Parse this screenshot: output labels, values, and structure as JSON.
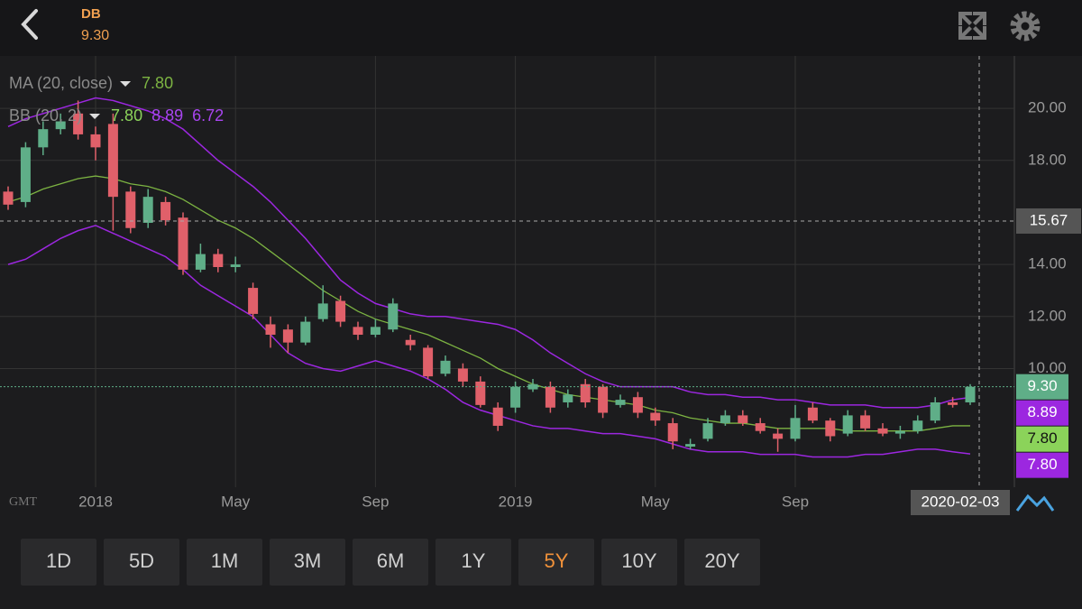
{
  "header": {
    "symbol": "DB",
    "price": "9.30"
  },
  "chart_data": {
    "type": "candlestick",
    "categories": [
      null,
      null,
      null,
      null,
      null,
      "2018",
      null,
      null,
      null,
      null,
      null,
      null,
      null,
      "May",
      null,
      null,
      null,
      null,
      null,
      null,
      null,
      "Sep",
      null,
      null,
      null,
      null,
      null,
      null,
      null,
      "2019",
      null,
      null,
      null,
      null,
      null,
      null,
      null,
      "May",
      null,
      null,
      null,
      null,
      null,
      null,
      null,
      "Sep",
      null,
      null,
      null,
      null,
      null,
      null,
      null,
      null,
      null,
      null
    ],
    "open": [
      16.8,
      16.4,
      18.5,
      19.2,
      19.8,
      19.0,
      19.4,
      16.8,
      15.6,
      16.4,
      15.8,
      13.8,
      14.4,
      13.9,
      13.1,
      11.7,
      11.5,
      11.0,
      11.9,
      12.6,
      11.6,
      11.3,
      11.5,
      11.1,
      10.8,
      9.8,
      10.0,
      9.5,
      8.5,
      8.5,
      9.2,
      9.3,
      8.7,
      9.4,
      9.3,
      8.6,
      8.9,
      8.3,
      7.9,
      7.0,
      7.3,
      7.9,
      8.2,
      7.9,
      7.5,
      7.3,
      8.5,
      8.0,
      7.5,
      8.2,
      7.7,
      7.5,
      7.6,
      8.0,
      8.7,
      8.7
    ],
    "high": [
      17.0,
      18.7,
      19.5,
      19.8,
      20.3,
      19.3,
      19.8,
      17.0,
      16.9,
      16.6,
      16.0,
      14.8,
      14.6,
      14.3,
      13.3,
      12.0,
      11.7,
      12.0,
      13.2,
      12.8,
      11.8,
      11.9,
      12.7,
      11.3,
      10.9,
      10.5,
      10.2,
      9.7,
      8.7,
      9.5,
      9.6,
      9.5,
      9.2,
      9.6,
      9.4,
      9.0,
      9.1,
      8.5,
      8.1,
      7.3,
      8.1,
      8.4,
      8.4,
      8.1,
      7.7,
      8.6,
      8.7,
      8.1,
      8.4,
      8.4,
      7.9,
      7.8,
      8.2,
      8.9,
      8.9,
      9.4
    ],
    "low": [
      16.1,
      16.2,
      18.2,
      19.0,
      18.8,
      18.0,
      15.3,
      15.2,
      15.4,
      15.5,
      13.6,
      13.7,
      13.7,
      13.7,
      11.9,
      10.8,
      10.6,
      10.9,
      11.8,
      11.6,
      11.1,
      11.2,
      11.4,
      10.7,
      9.6,
      9.7,
      9.3,
      8.5,
      7.6,
      8.3,
      9.1,
      8.3,
      8.5,
      8.5,
      8.1,
      8.5,
      8.1,
      7.8,
      6.9,
      6.9,
      7.2,
      7.8,
      7.8,
      7.5,
      6.8,
      7.2,
      7.9,
      7.2,
      7.4,
      7.6,
      7.4,
      7.3,
      7.5,
      7.9,
      8.5,
      8.6
    ],
    "close": [
      16.3,
      18.5,
      19.2,
      19.5,
      19.0,
      18.5,
      16.6,
      15.4,
      16.6,
      15.7,
      13.8,
      14.4,
      13.9,
      14.0,
      12.1,
      11.3,
      11.0,
      11.8,
      12.5,
      11.8,
      11.3,
      11.6,
      12.5,
      10.9,
      9.7,
      10.3,
      9.5,
      8.6,
      7.8,
      9.3,
      9.4,
      8.5,
      9.0,
      8.7,
      8.3,
      8.8,
      8.3,
      8.0,
      7.2,
      7.1,
      7.9,
      8.2,
      7.9,
      7.6,
      7.3,
      8.1,
      8.0,
      7.4,
      8.2,
      7.7,
      7.5,
      7.6,
      8.0,
      8.7,
      8.6,
      9.3
    ],
    "up_color": "#5fae88",
    "down_color": "#e0606a",
    "ylim": [
      5.44,
      21.91
    ],
    "yticks": [
      {
        "value": 10,
        "label": "10.00"
      },
      {
        "value": 12,
        "label": "12.00"
      },
      {
        "value": 14,
        "label": "14.00"
      },
      {
        "value": 18,
        "label": "18.00"
      },
      {
        "value": 20,
        "label": "20.00"
      }
    ],
    "grid": true,
    "series": [
      {
        "name": "MA (20, close)",
        "color": "#7cb342",
        "readouts": [
          "7.80"
        ],
        "values": [
          16.4,
          16.6,
          16.9,
          17.1,
          17.3,
          17.4,
          17.3,
          17.1,
          17.0,
          16.8,
          16.5,
          16.1,
          15.7,
          15.4,
          15.0,
          14.5,
          14.0,
          13.5,
          13.0,
          12.6,
          12.2,
          11.9,
          11.7,
          11.5,
          11.3,
          11.0,
          10.7,
          10.4,
          10.0,
          9.7,
          9.4,
          9.2,
          9.0,
          8.9,
          8.8,
          8.7,
          8.6,
          8.4,
          8.3,
          8.1,
          8.0,
          7.9,
          7.9,
          7.8,
          7.7,
          7.7,
          7.7,
          7.7,
          7.6,
          7.6,
          7.6,
          7.6,
          7.6,
          7.7,
          7.8,
          7.8
        ]
      },
      {
        "name": "BB (20, 2)",
        "color": "#9c27e0",
        "readouts": [
          "7.80",
          "8.89",
          "6.72"
        ],
        "upper": [
          19.3,
          19.6,
          19.8,
          20.0,
          20.2,
          20.4,
          20.3,
          20.1,
          19.9,
          19.6,
          19.2,
          18.6,
          18.0,
          17.5,
          17.0,
          16.4,
          15.7,
          15.0,
          14.2,
          13.4,
          12.9,
          12.5,
          12.3,
          12.1,
          12.0,
          12.0,
          11.9,
          11.8,
          11.7,
          11.5,
          11.1,
          10.6,
          10.2,
          9.8,
          9.5,
          9.3,
          9.3,
          9.3,
          9.3,
          9.1,
          9.0,
          9.0,
          8.9,
          8.9,
          8.8,
          8.8,
          8.7,
          8.6,
          8.6,
          8.6,
          8.5,
          8.5,
          8.5,
          8.6,
          8.8,
          8.89
        ],
        "lower": [
          14.0,
          14.2,
          14.6,
          15.0,
          15.3,
          15.5,
          15.2,
          14.9,
          14.6,
          14.3,
          13.8,
          13.2,
          12.8,
          12.4,
          12.0,
          11.3,
          10.6,
          10.2,
          10.0,
          9.9,
          10.1,
          10.3,
          10.1,
          9.9,
          9.6,
          9.2,
          8.7,
          8.4,
          8.2,
          8.0,
          7.8,
          7.7,
          7.7,
          7.6,
          7.5,
          7.5,
          7.4,
          7.3,
          7.1,
          6.9,
          6.8,
          6.8,
          6.8,
          6.7,
          6.7,
          6.7,
          6.6,
          6.6,
          6.6,
          6.7,
          6.7,
          6.8,
          6.9,
          6.9,
          6.8,
          6.72
        ]
      }
    ],
    "price_tags": [
      {
        "value": 9.3,
        "label": "9.30",
        "color": "#5fae88",
        "text_color": "#ffffff"
      },
      {
        "value": 8.89,
        "label": "8.89",
        "color": "#9c27e0",
        "text_color": "#ffffff"
      },
      {
        "value": 7.8,
        "label": "7.80",
        "color": "#8bd35a",
        "text_color": "#111111"
      },
      {
        "value": 7.8,
        "label": "7.80",
        "color": "#9c27e0",
        "text_color": "#ffffff"
      }
    ],
    "crosshair": {
      "value": 15.67,
      "label": "15.67",
      "x_label": "2020-02-03"
    },
    "timezone": "GMT"
  },
  "ranges": {
    "options": [
      "1D",
      "5D",
      "1M",
      "3M",
      "6M",
      "1Y",
      "5Y",
      "10Y",
      "20Y"
    ],
    "active": "5Y"
  }
}
